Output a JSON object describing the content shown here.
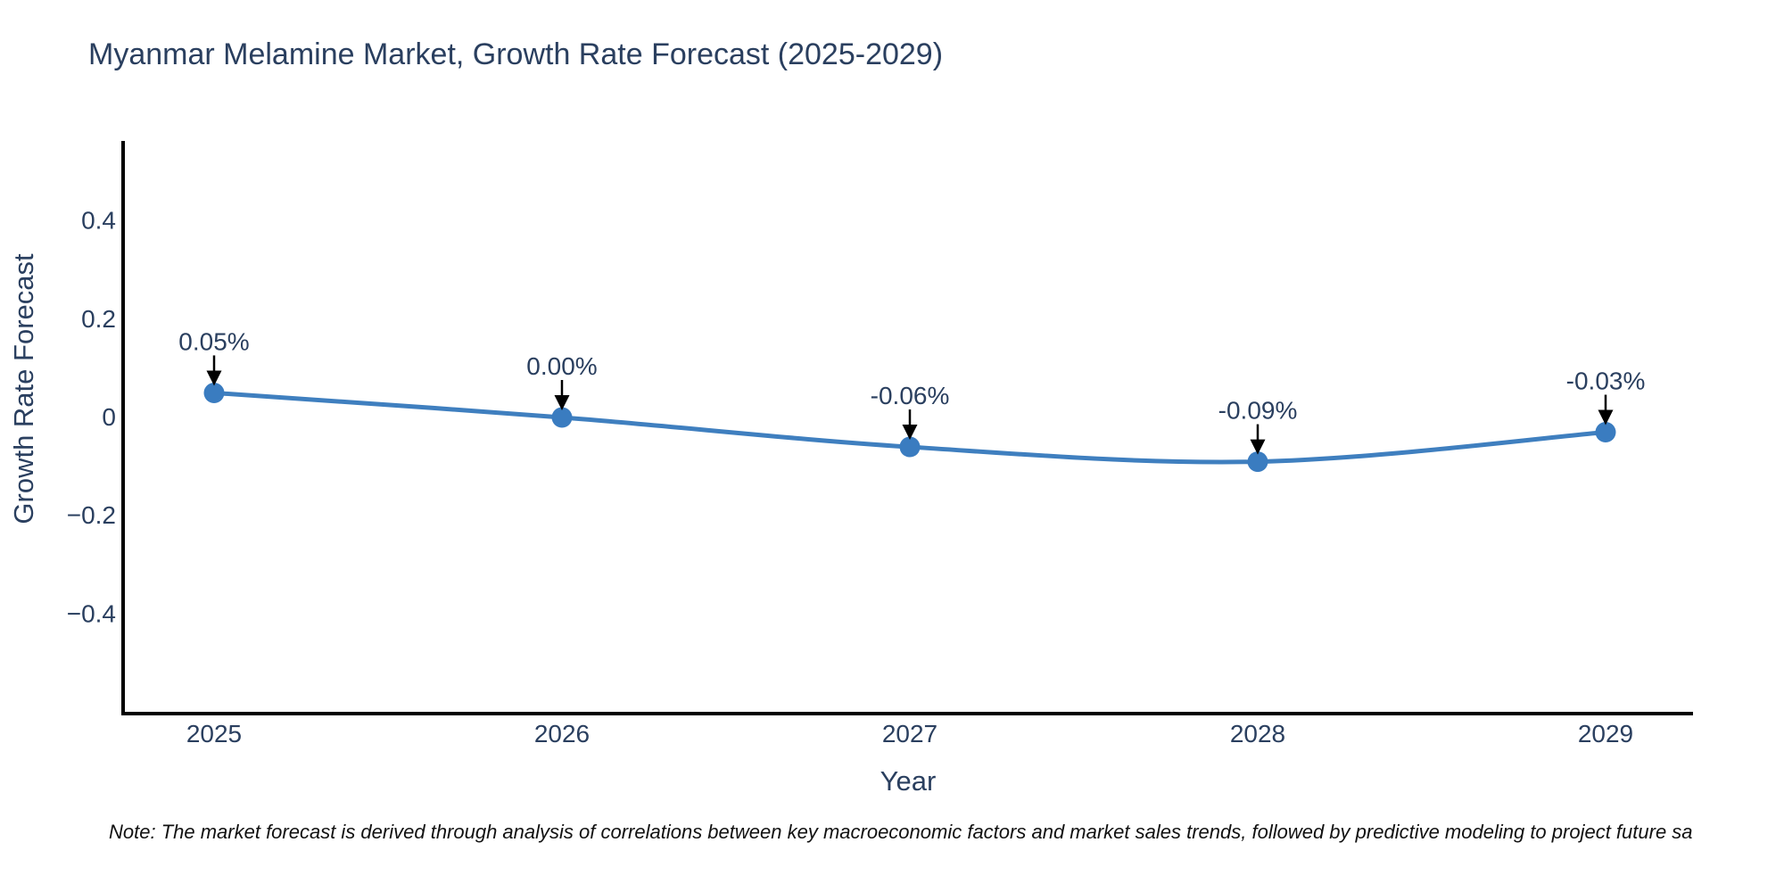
{
  "chart_data": {
    "type": "line",
    "title": "Myanmar Melamine Market, Growth Rate Forecast (2025-2029)",
    "xlabel": "Year",
    "ylabel": "Growth Rate Forecast",
    "categories": [
      "2025",
      "2026",
      "2027",
      "2028",
      "2029"
    ],
    "series": [
      {
        "name": "Growth Rate Forecast",
        "values": [
          0.05,
          0.0,
          -0.06,
          -0.09,
          -0.03
        ],
        "point_labels": [
          "0.05%",
          "0.00%",
          "-0.06%",
          "-0.09%",
          "-0.03%"
        ]
      }
    ],
    "y_ticks": [
      {
        "label": "0.4",
        "value": 0.4
      },
      {
        "label": "0.2",
        "value": 0.2
      },
      {
        "label": "0",
        "value": 0
      },
      {
        "label": "−0.2",
        "value": -0.2
      },
      {
        "label": "−0.4",
        "value": -0.4
      }
    ],
    "ylim": [
      -0.6,
      0.56
    ],
    "grid": false,
    "legend": "none",
    "line_shape": "spline",
    "annotation_style": "down-arrow",
    "colors": {
      "line": "#3f7fbf",
      "marker": "#3a7cc0",
      "arrow": "#000000",
      "axis_line": "#000000",
      "text": "#2a3f5f"
    }
  },
  "note": {
    "text": "Note: The market forecast is derived through analysis of correlations between key macroeconomic factors and market sales trends, followed by predictive modeling to project future sa"
  }
}
